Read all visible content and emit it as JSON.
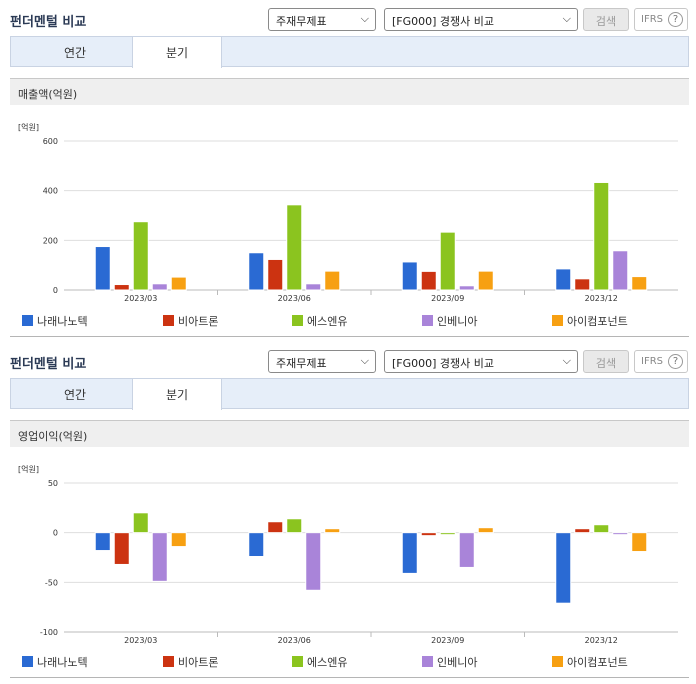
{
  "panels": [
    {
      "title": "펀더멘털 비교",
      "select1": "주재무제표",
      "select2": "[FG000] 경쟁사 비교",
      "search_label": "검색",
      "ifrs_label": "IFRS",
      "ifrs_help": "?",
      "tabs": [
        {
          "label": "연간",
          "active": false
        },
        {
          "label": "분기",
          "active": true
        }
      ],
      "section_title": "매출액(억원)"
    },
    {
      "title": "펀더멘털 비교",
      "select1": "주재무제표",
      "select2": "[FG000] 경쟁사 비교",
      "search_label": "검색",
      "ifrs_label": "IFRS",
      "ifrs_help": "?",
      "tabs": [
        {
          "label": "연간",
          "active": false
        },
        {
          "label": "분기",
          "active": true
        }
      ],
      "section_title": "영업이익(억원)"
    }
  ],
  "colors": {
    "나래나노텍": "#2a6ad3",
    "비아트론": "#cc3311",
    "에스엔유": "#8bc41f",
    "인베니아": "#a984d9",
    "아이컴포넌트": "#f7a012"
  },
  "chart_data": [
    {
      "type": "bar",
      "title": "매출액(억원)",
      "unit": "[억원]",
      "categories": [
        "2023/03",
        "2023/06",
        "2023/09",
        "2023/12"
      ],
      "ylim": [
        0,
        600
      ],
      "yticks": [
        "600",
        "400",
        "200",
        "0"
      ],
      "grid": true,
      "legend": "bottom",
      "series": [
        {
          "name": "나래나노텍",
          "values": [
            175,
            150,
            113,
            85
          ]
        },
        {
          "name": "비아트론",
          "values": [
            22,
            123,
            75,
            45
          ]
        },
        {
          "name": "에스엔유",
          "values": [
            275,
            343,
            233,
            433
          ]
        },
        {
          "name": "인베니아",
          "values": [
            25,
            25,
            17,
            158
          ]
        },
        {
          "name": "아이컴포넌트",
          "values": [
            52,
            76,
            76,
            54
          ]
        }
      ]
    },
    {
      "type": "bar",
      "title": "영업이익(억원)",
      "unit": "[억원]",
      "categories": [
        "2023/03",
        "2023/06",
        "2023/09",
        "2023/12"
      ],
      "ylim": [
        -100,
        50
      ],
      "yticks": [
        "50",
        "0",
        "-50",
        "-100"
      ],
      "grid": true,
      "legend": "bottom",
      "series": [
        {
          "name": "나래나노텍",
          "values": [
            -18,
            -24,
            -41,
            -71
          ]
        },
        {
          "name": "비아트론",
          "values": [
            -32,
            11,
            -3,
            4
          ]
        },
        {
          "name": "에스엔유",
          "values": [
            20,
            14,
            -2,
            8
          ]
        },
        {
          "name": "인베니아",
          "values": [
            -49,
            -58,
            -35,
            -2
          ]
        },
        {
          "name": "아이컴포넌트",
          "values": [
            -14,
            4,
            5,
            -19
          ]
        }
      ]
    }
  ]
}
